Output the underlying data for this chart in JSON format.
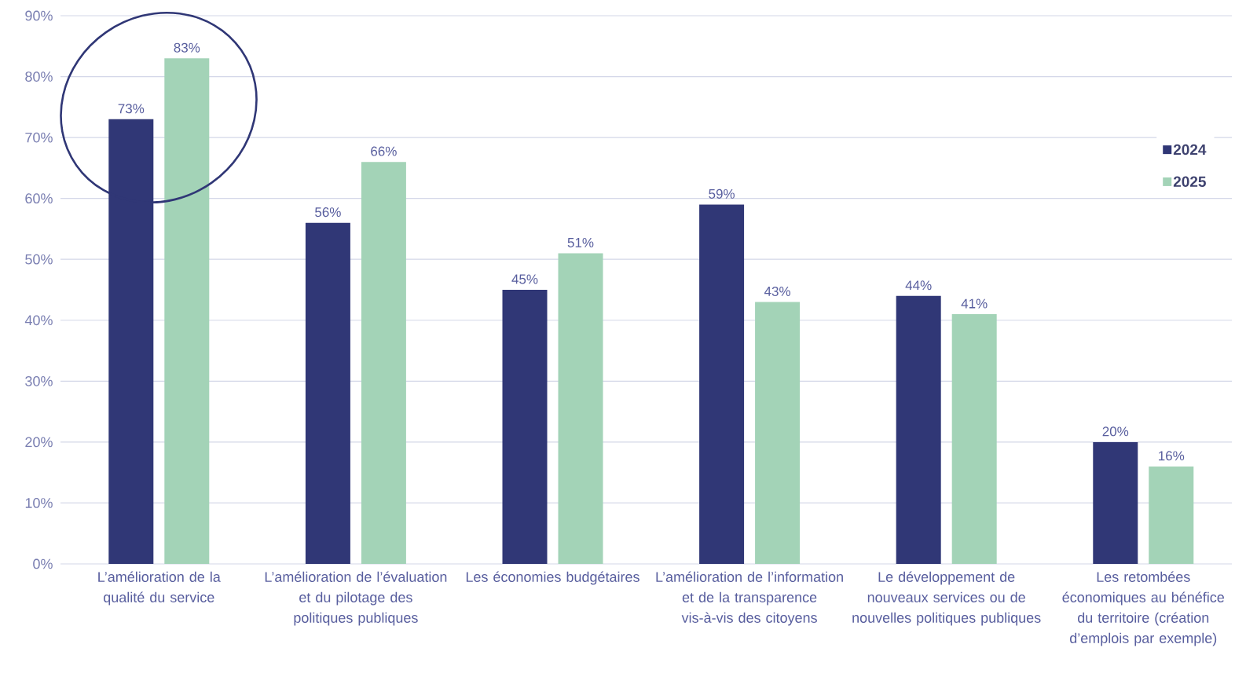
{
  "chart_data": {
    "type": "bar",
    "categories": [
      "L’amélioration de la qualité du service",
      "L’amélioration de l’évaluation et du pilotage des politiques publiques",
      "Les économies budgétaires",
      "L’amélioration de l’information et de la transparence vis-à-vis des citoyens",
      "Le développement de nouveaux services ou de nouvelles politiques publiques",
      "Les retombées économiques au bénéfice du territoire (création d’emplois par exemple)"
    ],
    "series": [
      {
        "name": "2024",
        "color": "#303776",
        "values": [
          73,
          56,
          45,
          59,
          44,
          20
        ],
        "value_labels": [
          "73%",
          "56%",
          "45%",
          "59%",
          "44%",
          "20%"
        ]
      },
      {
        "name": "2025",
        "color": "#a3d3b7",
        "values": [
          83,
          66,
          51,
          43,
          41,
          16
        ],
        "value_labels": [
          "83%",
          "66%",
          "51%",
          "43%",
          "41%",
          "16%"
        ]
      }
    ],
    "ylim": [
      0,
      90
    ],
    "yticks": [
      {
        "value": 0,
        "label": "0%"
      },
      {
        "value": 10,
        "label": "10%"
      },
      {
        "value": 20,
        "label": "20%"
      },
      {
        "value": 30,
        "label": "30%"
      },
      {
        "value": 40,
        "label": "40%"
      },
      {
        "value": 50,
        "label": "50%"
      },
      {
        "value": 60,
        "label": "60%"
      },
      {
        "value": 70,
        "label": "70%"
      },
      {
        "value": 80,
        "label": "80%"
      },
      {
        "value": 90,
        "label": "90%"
      }
    ],
    "grid": "y",
    "legend": "right"
  }
}
